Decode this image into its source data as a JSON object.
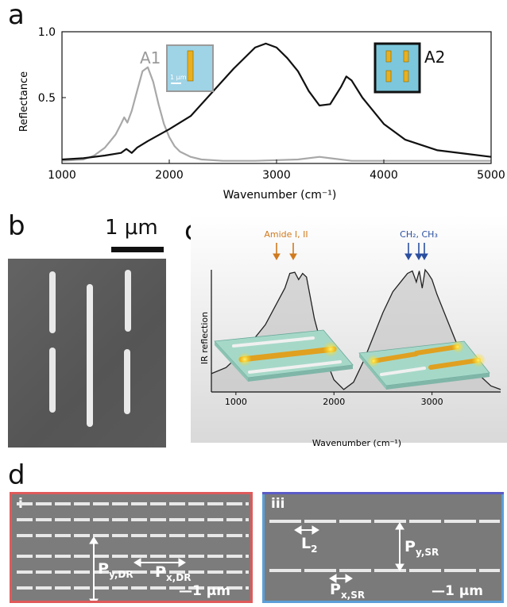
{
  "panels": {
    "a": {
      "label": "a",
      "inset_A1_label": "A1",
      "inset_A2_label": "A2",
      "inset_scale": "1 μm"
    },
    "b": {
      "label": "b",
      "scalebar": "1 μm"
    },
    "c": {
      "label": "c",
      "annot_amide": "Amide I, II",
      "annot_ch": "CH₂, CH₃",
      "colors": {
        "amide_arrow": "#d07a1e",
        "ch_arrow": "#2b4fa0",
        "substrate": "#9fd4c4",
        "rod": "#e0a020"
      }
    },
    "d": {
      "label": "d",
      "left": {
        "label": "i",
        "frame_color": "#e05a5a",
        "py": "P",
        "py_sub": "y,DR",
        "px": "P",
        "px_sub": "x,DR",
        "scale": "—1 μm"
      },
      "right": {
        "label": "iii",
        "frame_color": "#5b5bc8",
        "l2": "L",
        "l2_sub": "2",
        "py": "P",
        "py_sub": "y,SR",
        "px": "P",
        "px_sub": "x,SR",
        "scale": "—1 μm"
      }
    }
  },
  "chart_data": [
    {
      "type": "line",
      "panel": "a",
      "title": "",
      "xlabel": "Wavenumber (cm⁻¹)",
      "ylabel": "Reflectance",
      "xlim": [
        1000,
        5000
      ],
      "ylim": [
        0.0,
        1.0
      ],
      "xticks": [
        1000,
        2000,
        3000,
        4000,
        5000
      ],
      "yticks": [
        0.5,
        1.0
      ],
      "series": [
        {
          "name": "A1",
          "color": "#a8a8a8",
          "x": [
            1000,
            1200,
            1300,
            1400,
            1450,
            1500,
            1550,
            1580,
            1610,
            1650,
            1700,
            1750,
            1800,
            1850,
            1900,
            1950,
            2000,
            2050,
            2100,
            2200,
            2300,
            2500,
            2800,
            3200,
            3400,
            3500,
            3700,
            4000,
            4500,
            5000
          ],
          "y": [
            0.02,
            0.03,
            0.06,
            0.12,
            0.17,
            0.22,
            0.3,
            0.35,
            0.31,
            0.4,
            0.55,
            0.7,
            0.73,
            0.62,
            0.45,
            0.3,
            0.2,
            0.13,
            0.09,
            0.05,
            0.03,
            0.02,
            0.02,
            0.03,
            0.05,
            0.04,
            0.02,
            0.02,
            0.02,
            0.02
          ]
        },
        {
          "name": "A2",
          "color": "#111111",
          "x": [
            1000,
            1200,
            1400,
            1550,
            1600,
            1650,
            1700,
            1800,
            2000,
            2200,
            2400,
            2600,
            2800,
            2900,
            3000,
            3100,
            3200,
            3300,
            3400,
            3500,
            3600,
            3650,
            3700,
            3800,
            4000,
            4200,
            4500,
            4800,
            5000
          ],
          "y": [
            0.03,
            0.04,
            0.06,
            0.08,
            0.11,
            0.08,
            0.12,
            0.17,
            0.26,
            0.36,
            0.54,
            0.72,
            0.88,
            0.91,
            0.88,
            0.8,
            0.7,
            0.55,
            0.44,
            0.45,
            0.58,
            0.66,
            0.63,
            0.5,
            0.3,
            0.18,
            0.1,
            0.07,
            0.05
          ]
        }
      ]
    },
    {
      "type": "line",
      "panel": "c",
      "title": "",
      "xlabel": "Wavenumber (cm⁻¹)",
      "ylabel": "IR reflection",
      "xlim": [
        750,
        3700
      ],
      "xticks": [
        1000,
        2000,
        3000
      ],
      "series": [
        {
          "x": [
            750,
            900,
            1100,
            1300,
            1400,
            1500,
            1550,
            1600,
            1640,
            1680,
            1720,
            1800,
            1900,
            2000,
            2100,
            2200,
            2300,
            2400,
            2500,
            2600,
            2700,
            2750,
            2800,
            2840,
            2870,
            2900,
            2930,
            2960,
            3000,
            3050,
            3150,
            3250,
            3400,
            3600,
            3700
          ],
          "y": [
            0.15,
            0.2,
            0.35,
            0.55,
            0.7,
            0.85,
            0.97,
            0.98,
            0.92,
            0.97,
            0.94,
            0.6,
            0.3,
            0.1,
            0.02,
            0.08,
            0.25,
            0.45,
            0.65,
            0.82,
            0.92,
            0.97,
            0.99,
            0.9,
            0.99,
            0.85,
            1.0,
            0.97,
            0.92,
            0.8,
            0.6,
            0.4,
            0.2,
            0.05,
            0.02
          ]
        }
      ]
    }
  ]
}
